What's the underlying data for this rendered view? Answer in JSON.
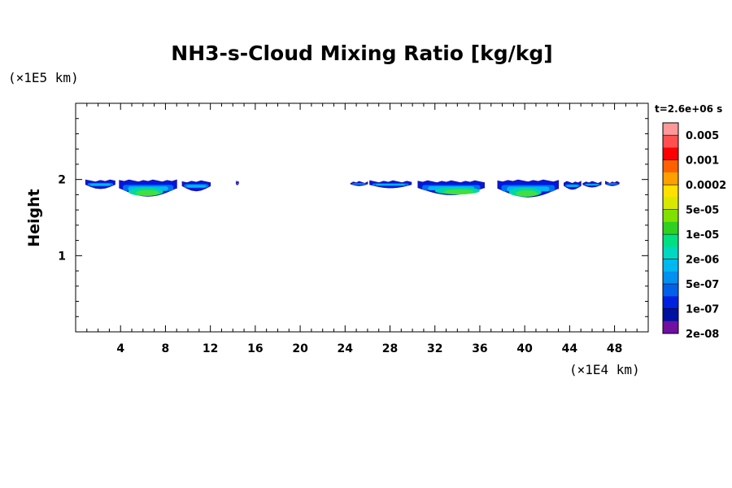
{
  "chart_data": {
    "type": "heatmap",
    "title": "NH3-s-Cloud Mixing Ratio [kg/kg]",
    "xlabel": "",
    "ylabel": "Height",
    "x_unit": "(×1E4 km)",
    "y_unit": "(×1E5 km)",
    "time_label": "t=2.6e+06 s",
    "xlim": [
      0,
      51
    ],
    "ylim": [
      0,
      3
    ],
    "x_ticks": [
      4,
      8,
      12,
      16,
      20,
      24,
      28,
      32,
      36,
      40,
      44,
      48
    ],
    "y_ticks": [
      1,
      2
    ],
    "colorbar": {
      "levels": [
        "0.005",
        "0.001",
        "0.0002",
        "5e-05",
        "1e-05",
        "2e-06",
        "5e-07",
        "1e-07",
        "2e-08"
      ],
      "colors": [
        "#ff9999",
        "#ff5050",
        "#ff0000",
        "#ff6000",
        "#ffa000",
        "#ffe000",
        "#d8e800",
        "#80e000",
        "#30d020",
        "#00e080",
        "#00d8c0",
        "#00b8f0",
        "#0090f0",
        "#0060e8",
        "#0020e0",
        "#0010a0",
        "#7010a0"
      ]
    },
    "cloud_patches": [
      {
        "x": [
          0.9,
          3.5
        ],
        "top": 1.98,
        "bottom": 1.88,
        "inner": null
      },
      {
        "x": [
          3.9,
          9.0
        ],
        "top": 1.98,
        "bottom": 1.78,
        "inner": [
          4.7,
          7.8
        ]
      },
      {
        "x": [
          9.5,
          12.0
        ],
        "top": 1.97,
        "bottom": 1.85,
        "inner": null
      },
      {
        "x": [
          14.3,
          14.5
        ],
        "top": 1.96,
        "bottom": 1.93,
        "inner": null
      },
      {
        "x": [
          24.5,
          26.0
        ],
        "top": 1.96,
        "bottom": 1.92,
        "inner": null
      },
      {
        "x": [
          26.2,
          29.9
        ],
        "top": 1.97,
        "bottom": 1.89,
        "inner": null
      },
      {
        "x": [
          30.5,
          36.4
        ],
        "top": 1.97,
        "bottom": 1.8,
        "inner": [
          32.0,
          36.0
        ]
      },
      {
        "x": [
          37.6,
          43.0
        ],
        "top": 1.98,
        "bottom": 1.77,
        "inner": [
          38.6,
          41.5
        ]
      },
      {
        "x": [
          43.5,
          45.0
        ],
        "top": 1.96,
        "bottom": 1.87,
        "inner": null
      },
      {
        "x": [
          45.2,
          46.8
        ],
        "top": 1.96,
        "bottom": 1.9,
        "inner": null
      },
      {
        "x": [
          47.2,
          48.4
        ],
        "top": 1.96,
        "bottom": 1.92,
        "inner": null
      }
    ]
  }
}
